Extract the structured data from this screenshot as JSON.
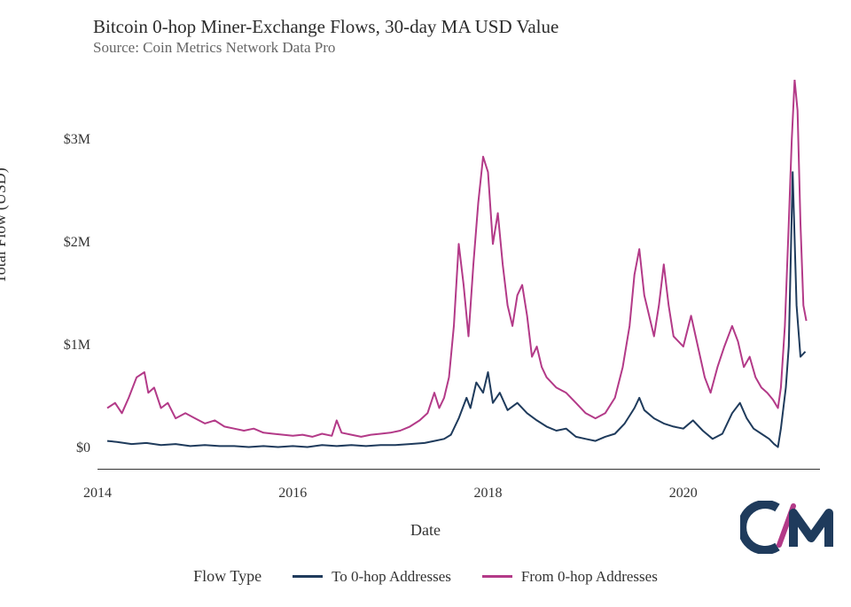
{
  "chart": {
    "type": "line",
    "title": "Bitcoin 0-hop Miner-Exchange Flows, 30-day MA USD Value",
    "subtitle": "Source: Coin Metrics Network Data Pro",
    "x_axis_label": "Date",
    "y_axis_label": "Total Flow (USD)",
    "background_color": "#ffffff",
    "title_fontsize": 21,
    "subtitle_fontsize": 17,
    "label_fontsize": 18,
    "tick_fontsize": 16,
    "axis_color": "#333333",
    "xlim": [
      2014,
      2021.4
    ],
    "ylim": [
      -200000,
      3600000
    ],
    "yticks": [
      {
        "v": 0,
        "label": "$0"
      },
      {
        "v": 1000000,
        "label": "$1M"
      },
      {
        "v": 2000000,
        "label": "$2M"
      },
      {
        "v": 3000000,
        "label": "$3M"
      }
    ],
    "xticks": [
      {
        "v": 2014,
        "label": "2014"
      },
      {
        "v": 2016,
        "label": "2016"
      },
      {
        "v": 2018,
        "label": "2018"
      },
      {
        "v": 2020,
        "label": "2020"
      }
    ],
    "legend": {
      "title": "Flow Type",
      "items": [
        {
          "label": "To 0-hop Addresses",
          "color": "#1f3b5c"
        },
        {
          "label": "From 0-hop Addresses",
          "color": "#b33a88"
        }
      ]
    },
    "line_width": 2.0,
    "series": {
      "to_0hop": {
        "color": "#1f3b5c",
        "points": [
          [
            2014.1,
            0.08
          ],
          [
            2014.2,
            0.07
          ],
          [
            2014.35,
            0.05
          ],
          [
            2014.5,
            0.06
          ],
          [
            2014.65,
            0.04
          ],
          [
            2014.8,
            0.05
          ],
          [
            2014.95,
            0.03
          ],
          [
            2015.1,
            0.04
          ],
          [
            2015.25,
            0.03
          ],
          [
            2015.4,
            0.03
          ],
          [
            2015.55,
            0.02
          ],
          [
            2015.7,
            0.03
          ],
          [
            2015.85,
            0.02
          ],
          [
            2016.0,
            0.03
          ],
          [
            2016.15,
            0.02
          ],
          [
            2016.3,
            0.04
          ],
          [
            2016.45,
            0.03
          ],
          [
            2016.6,
            0.04
          ],
          [
            2016.75,
            0.03
          ],
          [
            2016.9,
            0.04
          ],
          [
            2017.05,
            0.04
          ],
          [
            2017.2,
            0.05
          ],
          [
            2017.35,
            0.06
          ],
          [
            2017.45,
            0.08
          ],
          [
            2017.55,
            0.1
          ],
          [
            2017.62,
            0.14
          ],
          [
            2017.7,
            0.3
          ],
          [
            2017.78,
            0.5
          ],
          [
            2017.82,
            0.4
          ],
          [
            2017.88,
            0.65
          ],
          [
            2017.95,
            0.55
          ],
          [
            2018.0,
            0.75
          ],
          [
            2018.05,
            0.45
          ],
          [
            2018.12,
            0.55
          ],
          [
            2018.2,
            0.38
          ],
          [
            2018.3,
            0.45
          ],
          [
            2018.4,
            0.35
          ],
          [
            2018.5,
            0.28
          ],
          [
            2018.6,
            0.22
          ],
          [
            2018.7,
            0.18
          ],
          [
            2018.8,
            0.2
          ],
          [
            2018.9,
            0.12
          ],
          [
            2019.0,
            0.1
          ],
          [
            2019.1,
            0.08
          ],
          [
            2019.2,
            0.12
          ],
          [
            2019.3,
            0.15
          ],
          [
            2019.4,
            0.25
          ],
          [
            2019.5,
            0.4
          ],
          [
            2019.55,
            0.5
          ],
          [
            2019.6,
            0.38
          ],
          [
            2019.7,
            0.3
          ],
          [
            2019.8,
            0.25
          ],
          [
            2019.9,
            0.22
          ],
          [
            2020.0,
            0.2
          ],
          [
            2020.1,
            0.28
          ],
          [
            2020.2,
            0.18
          ],
          [
            2020.3,
            0.1
          ],
          [
            2020.4,
            0.15
          ],
          [
            2020.5,
            0.35
          ],
          [
            2020.58,
            0.45
          ],
          [
            2020.65,
            0.3
          ],
          [
            2020.72,
            0.2
          ],
          [
            2020.8,
            0.15
          ],
          [
            2020.88,
            0.1
          ],
          [
            2020.93,
            0.05
          ],
          [
            2020.97,
            0.02
          ],
          [
            2021.0,
            0.2
          ],
          [
            2021.05,
            0.6
          ],
          [
            2021.08,
            1.0
          ],
          [
            2021.12,
            2.7
          ],
          [
            2021.16,
            1.4
          ],
          [
            2021.2,
            0.9
          ],
          [
            2021.25,
            0.95
          ]
        ]
      },
      "from_0hop": {
        "color": "#b33a88",
        "points": [
          [
            2014.1,
            0.4
          ],
          [
            2014.18,
            0.45
          ],
          [
            2014.25,
            0.35
          ],
          [
            2014.32,
            0.5
          ],
          [
            2014.4,
            0.7
          ],
          [
            2014.48,
            0.75
          ],
          [
            2014.52,
            0.55
          ],
          [
            2014.58,
            0.6
          ],
          [
            2014.65,
            0.4
          ],
          [
            2014.72,
            0.45
          ],
          [
            2014.8,
            0.3
          ],
          [
            2014.9,
            0.35
          ],
          [
            2015.0,
            0.3
          ],
          [
            2015.1,
            0.25
          ],
          [
            2015.2,
            0.28
          ],
          [
            2015.3,
            0.22
          ],
          [
            2015.4,
            0.2
          ],
          [
            2015.5,
            0.18
          ],
          [
            2015.6,
            0.2
          ],
          [
            2015.7,
            0.16
          ],
          [
            2015.8,
            0.15
          ],
          [
            2015.9,
            0.14
          ],
          [
            2016.0,
            0.13
          ],
          [
            2016.1,
            0.14
          ],
          [
            2016.2,
            0.12
          ],
          [
            2016.3,
            0.15
          ],
          [
            2016.4,
            0.13
          ],
          [
            2016.45,
            0.28
          ],
          [
            2016.5,
            0.16
          ],
          [
            2016.6,
            0.14
          ],
          [
            2016.7,
            0.12
          ],
          [
            2016.8,
            0.14
          ],
          [
            2016.9,
            0.15
          ],
          [
            2017.0,
            0.16
          ],
          [
            2017.1,
            0.18
          ],
          [
            2017.2,
            0.22
          ],
          [
            2017.3,
            0.28
          ],
          [
            2017.38,
            0.35
          ],
          [
            2017.45,
            0.55
          ],
          [
            2017.5,
            0.4
          ],
          [
            2017.55,
            0.5
          ],
          [
            2017.6,
            0.7
          ],
          [
            2017.65,
            1.2
          ],
          [
            2017.7,
            2.0
          ],
          [
            2017.75,
            1.6
          ],
          [
            2017.8,
            1.1
          ],
          [
            2017.85,
            1.8
          ],
          [
            2017.9,
            2.4
          ],
          [
            2017.95,
            2.85
          ],
          [
            2018.0,
            2.7
          ],
          [
            2018.05,
            2.0
          ],
          [
            2018.1,
            2.3
          ],
          [
            2018.15,
            1.8
          ],
          [
            2018.2,
            1.4
          ],
          [
            2018.25,
            1.2
          ],
          [
            2018.3,
            1.5
          ],
          [
            2018.35,
            1.6
          ],
          [
            2018.4,
            1.3
          ],
          [
            2018.45,
            0.9
          ],
          [
            2018.5,
            1.0
          ],
          [
            2018.55,
            0.8
          ],
          [
            2018.6,
            0.7
          ],
          [
            2018.7,
            0.6
          ],
          [
            2018.8,
            0.55
          ],
          [
            2018.9,
            0.45
          ],
          [
            2019.0,
            0.35
          ],
          [
            2019.1,
            0.3
          ],
          [
            2019.2,
            0.35
          ],
          [
            2019.3,
            0.5
          ],
          [
            2019.38,
            0.8
          ],
          [
            2019.45,
            1.2
          ],
          [
            2019.5,
            1.7
          ],
          [
            2019.55,
            1.95
          ],
          [
            2019.6,
            1.5
          ],
          [
            2019.65,
            1.3
          ],
          [
            2019.7,
            1.1
          ],
          [
            2019.75,
            1.4
          ],
          [
            2019.8,
            1.8
          ],
          [
            2019.85,
            1.4
          ],
          [
            2019.9,
            1.1
          ],
          [
            2020.0,
            1.0
          ],
          [
            2020.08,
            1.3
          ],
          [
            2020.15,
            1.0
          ],
          [
            2020.22,
            0.7
          ],
          [
            2020.28,
            0.55
          ],
          [
            2020.35,
            0.8
          ],
          [
            2020.42,
            1.0
          ],
          [
            2020.5,
            1.2
          ],
          [
            2020.56,
            1.05
          ],
          [
            2020.62,
            0.8
          ],
          [
            2020.68,
            0.9
          ],
          [
            2020.74,
            0.7
          ],
          [
            2020.8,
            0.6
          ],
          [
            2020.86,
            0.55
          ],
          [
            2020.92,
            0.48
          ],
          [
            2020.97,
            0.4
          ],
          [
            2021.0,
            0.6
          ],
          [
            2021.04,
            1.2
          ],
          [
            2021.08,
            2.2
          ],
          [
            2021.11,
            3.0
          ],
          [
            2021.14,
            3.6
          ],
          [
            2021.17,
            3.3
          ],
          [
            2021.2,
            2.2
          ],
          [
            2021.23,
            1.4
          ],
          [
            2021.26,
            1.25
          ]
        ]
      }
    }
  },
  "logo": {
    "colors": {
      "c": "#1f3b5c",
      "slash": "#b33a88",
      "m": "#1f3b5c"
    }
  }
}
